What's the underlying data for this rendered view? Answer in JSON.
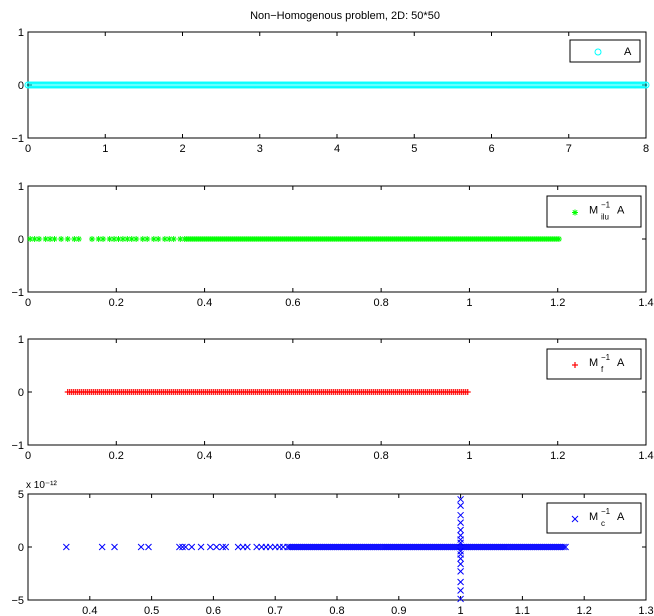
{
  "title": "Non−Homogenous problem, 2D: 50*50",
  "chart_data": [
    {
      "type": "scatter",
      "marker": "circle",
      "color": "#00ffff",
      "legend": "A",
      "legend_sub": "",
      "legend_sup": "",
      "legend_placement": "top-right",
      "xlim": [
        0,
        8
      ],
      "ylim": [
        -1,
        1
      ],
      "xticks": [
        0,
        1,
        2,
        3,
        4,
        5,
        6,
        7,
        8
      ],
      "xtick_labels": [
        "0",
        "1",
        "2",
        "3",
        "4",
        "5",
        "6",
        "7",
        "8"
      ],
      "yticks": [
        -1,
        0,
        1
      ],
      "ytick_labels": [
        "−1",
        "0",
        "1"
      ],
      "y_multiplier": "",
      "dense_ranges": [
        [
          0.0,
          8.0
        ]
      ],
      "points": []
    },
    {
      "type": "scatter",
      "marker": "asterisk",
      "color": "#00ff00",
      "legend": "M",
      "legend_sub": "ilu",
      "legend_sup": "−1",
      "legend_suffix": "A",
      "legend_placement": "top-right",
      "xlim": [
        0,
        1.4
      ],
      "ylim": [
        -1,
        1
      ],
      "xticks": [
        0,
        0.2,
        0.4,
        0.6,
        0.8,
        1.0,
        1.2,
        1.4
      ],
      "xtick_labels": [
        "0",
        "0.2",
        "0.4",
        "0.6",
        "0.8",
        "1",
        "1.2",
        "1.4"
      ],
      "yticks": [
        -1,
        0,
        1
      ],
      "ytick_labels": [
        "−1",
        "0",
        "1"
      ],
      "y_multiplier": "",
      "dense_ranges": [
        [
          0.36,
          1.205
        ]
      ],
      "points": [
        [
          0.005,
          0
        ],
        [
          0.015,
          0
        ],
        [
          0.025,
          0
        ],
        [
          0.04,
          0
        ],
        [
          0.05,
          0
        ],
        [
          0.06,
          0
        ],
        [
          0.075,
          0
        ],
        [
          0.09,
          0
        ],
        [
          0.105,
          0
        ],
        [
          0.115,
          0
        ],
        [
          0.145,
          0
        ],
        [
          0.16,
          0
        ],
        [
          0.17,
          0
        ],
        [
          0.185,
          0
        ],
        [
          0.195,
          0
        ],
        [
          0.205,
          0
        ],
        [
          0.215,
          0
        ],
        [
          0.225,
          0
        ],
        [
          0.235,
          0
        ],
        [
          0.245,
          0
        ],
        [
          0.26,
          0
        ],
        [
          0.27,
          0
        ],
        [
          0.285,
          0
        ],
        [
          0.295,
          0
        ],
        [
          0.31,
          0
        ],
        [
          0.32,
          0
        ],
        [
          0.33,
          0
        ],
        [
          0.345,
          0
        ],
        [
          0.355,
          0
        ]
      ]
    },
    {
      "type": "scatter",
      "marker": "plus",
      "color": "#ff0000",
      "legend": "M",
      "legend_sub": "f",
      "legend_sup": "−1",
      "legend_suffix": "A",
      "legend_placement": "top-right",
      "xlim": [
        0,
        1.4
      ],
      "ylim": [
        -1,
        1
      ],
      "xticks": [
        0,
        0.2,
        0.4,
        0.6,
        0.8,
        1.0,
        1.2,
        1.4
      ],
      "xtick_labels": [
        "0",
        "0.2",
        "0.4",
        "0.6",
        "0.8",
        "1",
        "1.2",
        "1.4"
      ],
      "yticks": [
        -1,
        0,
        1
      ],
      "ytick_labels": [
        "−1",
        "0",
        "1"
      ],
      "y_multiplier": "",
      "dense_ranges": [
        [
          0.09,
          1.0
        ]
      ],
      "points": []
    },
    {
      "type": "scatter",
      "marker": "x",
      "color": "#0000ff",
      "legend": "M",
      "legend_sub": "c",
      "legend_sup": "−1",
      "legend_suffix": "A",
      "legend_placement": "top-right",
      "xlim": [
        0.3,
        1.3
      ],
      "ylim": [
        -5,
        5
      ],
      "xticks": [
        0.4,
        0.5,
        0.6,
        0.7,
        0.8,
        0.9,
        1.0,
        1.1,
        1.2,
        1.3
      ],
      "xtick_labels": [
        "0.4",
        "0.5",
        "0.6",
        "0.7",
        "0.8",
        "0.9",
        "1",
        "1.1",
        "1.2",
        "1.3"
      ],
      "yticks": [
        -5,
        0,
        5
      ],
      "ytick_labels": [
        "−5",
        "0",
        "5"
      ],
      "y_multiplier": "x 10⁻¹²",
      "dense_ranges": [
        [
          0.72,
          1.17
        ]
      ],
      "points": [
        [
          0.362,
          0
        ],
        [
          0.42,
          0
        ],
        [
          0.44,
          0
        ],
        [
          0.483,
          0
        ],
        [
          0.495,
          0
        ],
        [
          0.545,
          0
        ],
        [
          0.55,
          0
        ],
        [
          0.555,
          0
        ],
        [
          0.565,
          0
        ],
        [
          0.58,
          0
        ],
        [
          0.595,
          0
        ],
        [
          0.605,
          0
        ],
        [
          0.615,
          0
        ],
        [
          0.62,
          0
        ],
        [
          0.64,
          0
        ],
        [
          0.648,
          0
        ],
        [
          0.655,
          0
        ],
        [
          0.67,
          0
        ],
        [
          0.678,
          0
        ],
        [
          0.685,
          0
        ],
        [
          0.692,
          0
        ],
        [
          0.7,
          0
        ],
        [
          0.707,
          0
        ],
        [
          0.713,
          0
        ],
        [
          1.0,
          4.5
        ],
        [
          1.0,
          3.9
        ],
        [
          1.0,
          3.0
        ],
        [
          1.0,
          2.3
        ],
        [
          1.0,
          1.6
        ],
        [
          1.0,
          1.1
        ],
        [
          1.0,
          0.7
        ],
        [
          1.0,
          0.4
        ],
        [
          1.0,
          -0.4
        ],
        [
          1.0,
          -0.7
        ],
        [
          1.0,
          -1.1
        ],
        [
          1.0,
          -1.6
        ],
        [
          1.0,
          -2.3
        ],
        [
          1.0,
          -3.3
        ],
        [
          1.0,
          -4.1
        ],
        [
          1.0,
          -4.9
        ]
      ]
    }
  ]
}
